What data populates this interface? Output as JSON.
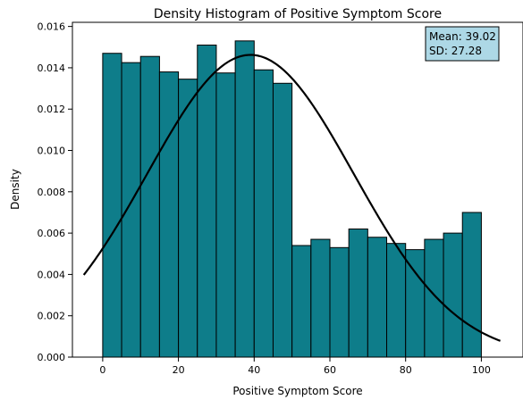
{
  "chart_data": {
    "type": "bar",
    "title": "Density Histogram of Positive Symptom Score",
    "xlabel": "Positive Symptom Score",
    "ylabel": "Density",
    "xlim": [
      -8,
      111
    ],
    "ylim": [
      0,
      0.0162
    ],
    "x_ticks": [
      0,
      20,
      40,
      60,
      80,
      100
    ],
    "y_ticks": [
      0.0,
      0.002,
      0.004,
      0.006,
      0.008,
      0.01,
      0.012,
      0.014,
      0.016
    ],
    "x_tick_labels": [
      "0",
      "20",
      "40",
      "60",
      "80",
      "100"
    ],
    "y_tick_labels": [
      "0.000",
      "0.002",
      "0.004",
      "0.006",
      "0.008",
      "0.010",
      "0.012",
      "0.014",
      "0.016"
    ],
    "bin_edges": [
      0,
      5,
      10,
      15,
      20,
      25,
      30,
      35,
      40,
      45,
      50,
      55,
      60,
      65,
      70,
      75,
      80,
      85,
      90,
      95,
      100
    ],
    "values": [
      0.0147,
      0.01425,
      0.01455,
      0.0138,
      0.01345,
      0.0151,
      0.01375,
      0.0153,
      0.0139,
      0.01325,
      0.0054,
      0.0057,
      0.0053,
      0.0062,
      0.0058,
      0.0055,
      0.0052,
      0.0057,
      0.006,
      0.007
    ],
    "curve": {
      "type": "normal-pdf",
      "mean": 39.02,
      "sd": 27.28,
      "x_range": [
        -5,
        105
      ]
    },
    "stats_box": {
      "mean_text": "Mean: 39.02",
      "sd_text": "SD: 27.28"
    },
    "grid": false,
    "colors": {
      "bar_fill": "#0e7d8a",
      "bar_edge": "#000000",
      "curve": "#000000",
      "stats_box_fill": "#add8e6",
      "stats_box_edge": "#000000"
    }
  }
}
